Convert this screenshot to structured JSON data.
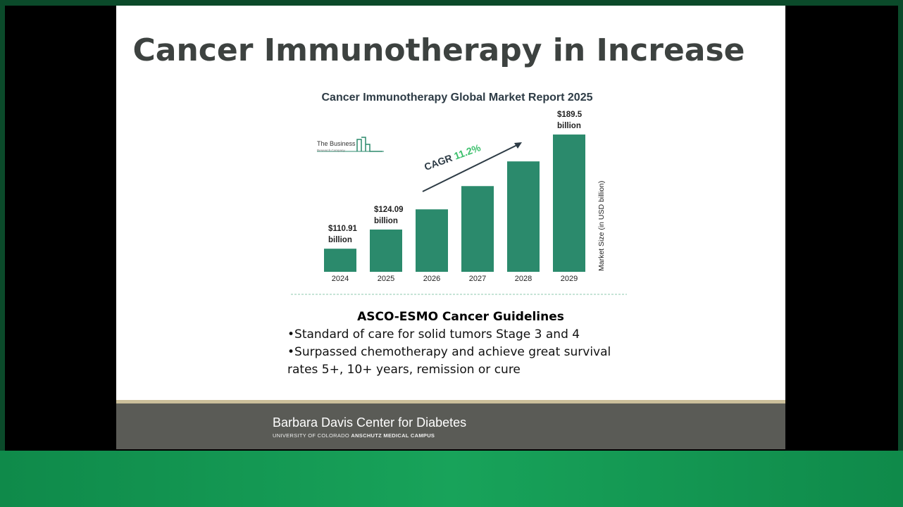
{
  "slide_title": "Cancer Immunotherapy in Increase",
  "chart_data": {
    "type": "bar",
    "title": "Cancer Immunotherapy Global Market Report 2025",
    "categories": [
      "2024",
      "2025",
      "2026",
      "2027",
      "2028",
      "2029"
    ],
    "values": [
      110.91,
      124.09,
      138,
      154,
      171,
      189.5
    ],
    "value_labels": [
      "$110.91 billion",
      "$124.09 billion",
      null,
      null,
      null,
      "$189.5 billion"
    ],
    "color": "#2b8a6c",
    "ylim": [
      95,
      190
    ],
    "y_label": "Market Size (in USD billion)",
    "annotation": {
      "label": "CAGR",
      "value": "11.2%"
    },
    "source_logo": {
      "name": "The Business",
      "sub": "Research Company"
    }
  },
  "guidelines": {
    "heading": "ASCO-ESMO Cancer Guidelines",
    "bullets": [
      "•Standard of care for solid tumors Stage 3 and 4",
      "•Surpassed chemotherapy and achieve great survival rates 5+, 10+ years, remission or cure"
    ]
  },
  "footer": {
    "name": "Barbara Davis Center for Diabetes",
    "university": "UNIVERSITY OF COLORADO",
    "campus": "ANSCHUTZ MEDICAL CAMPUS"
  }
}
